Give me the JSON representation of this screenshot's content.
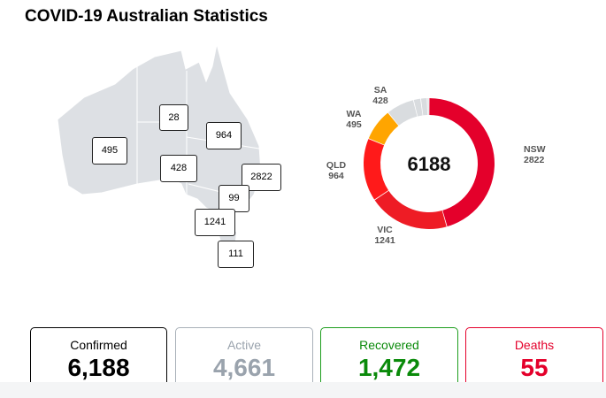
{
  "page": {
    "title": "COVID-19 Australian Statistics"
  },
  "map": {
    "region_counts": [
      {
        "state": "NT",
        "value": "28"
      },
      {
        "state": "QLD",
        "value": "964"
      },
      {
        "state": "WA",
        "value": "495"
      },
      {
        "state": "SA",
        "value": "428"
      },
      {
        "state": "NSW",
        "value": "2822"
      },
      {
        "state": "ACT",
        "value": "99"
      },
      {
        "state": "VIC",
        "value": "1241"
      },
      {
        "state": "TAS",
        "value": "111"
      }
    ],
    "land_color": "#dde0e4"
  },
  "donut": {
    "total": "6188",
    "slices": [
      {
        "label": "NSW",
        "value": 2822,
        "color": "#e4002b"
      },
      {
        "label": "VIC",
        "value": 1241,
        "color": "#ee1c25"
      },
      {
        "label": "QLD",
        "value": 964,
        "color": "#ff1a1a"
      },
      {
        "label": "WA",
        "value": 495,
        "color": "#ffa500"
      },
      {
        "label": "SA",
        "value": 428,
        "color": "#d9dcdf"
      },
      {
        "label": "",
        "value": 111,
        "color": "#d9dcdf"
      },
      {
        "label": "",
        "value": 99,
        "color": "#d9dcdf"
      },
      {
        "label": "",
        "value": 28,
        "color": "#d9dcdf"
      }
    ]
  },
  "stats": [
    {
      "label": "Confirmed",
      "value": "6,188",
      "color": "#000000",
      "border": "#000000"
    },
    {
      "label": "Active",
      "value": "4,661",
      "color": "#9aa3ad",
      "border": "#a9b0b8"
    },
    {
      "label": "Recovered",
      "value": "1,472",
      "color": "#0a8a0a",
      "border": "#1e9e1e"
    },
    {
      "label": "Deaths",
      "value": "55",
      "color": "#e4002b",
      "border": "#e4002b"
    }
  ]
}
